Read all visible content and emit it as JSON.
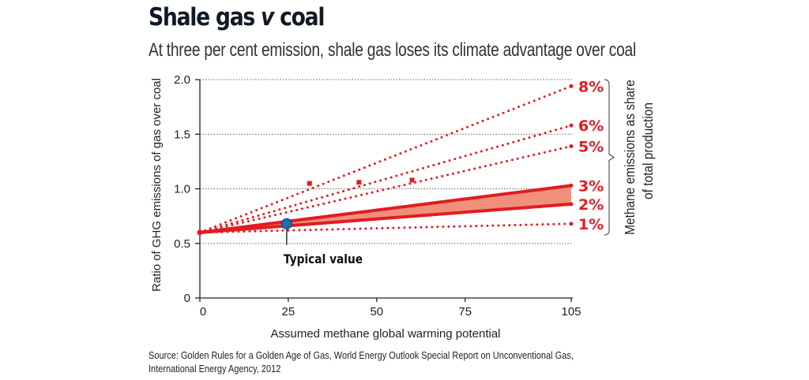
{
  "header": {
    "title_main": "Shale gas ",
    "title_v": "v",
    "title_end": " coal",
    "subtitle": "At three per cent emission, shale gas loses its climate advantage over coal"
  },
  "source": {
    "line1": "Source: Golden Rules for a Golden Age of Gas, World Energy Outlook Special Report on Unconventional Gas,",
    "line2": "International Energy Agency, 2012"
  },
  "colors": {
    "red": "#e31b23",
    "band_fill": "#f0907a",
    "typical_marker": "#1f6db5"
  },
  "chart_data": {
    "type": "line",
    "title": "Shale gas v coal",
    "subtitle": "At three per cent emission, shale gas loses its climate advantage over coal",
    "xlabel": "Assumed methane global warming potential",
    "ylabel": "Ratio of GHG emissions of gas over coal",
    "xlim": [
      0,
      105
    ],
    "ylim": [
      0,
      2.0
    ],
    "xticks": [
      0,
      25,
      50,
      75,
      105
    ],
    "xtick_labels": [
      "0",
      "25",
      "50",
      "75",
      "105"
    ],
    "yticks": [
      0,
      0.5,
      1.0,
      1.5,
      2.0
    ],
    "ytick_labels": [
      "0",
      "0.5",
      "1.0",
      "1.5",
      "2.0"
    ],
    "grid": "horizontal dotted",
    "legend_title": "Methane emissions as share of total production",
    "legend_placement": "right",
    "series": [
      {
        "name": "8%",
        "style": "dotted",
        "x": [
          0,
          105
        ],
        "y": [
          0.6,
          1.94
        ]
      },
      {
        "name": "6%",
        "style": "dotted",
        "x": [
          0,
          105
        ],
        "y": [
          0.6,
          1.58
        ]
      },
      {
        "name": "5%",
        "style": "dotted",
        "x": [
          0,
          105
        ],
        "y": [
          0.6,
          1.39
        ]
      },
      {
        "name": "3%",
        "style": "solid",
        "x": [
          0,
          105
        ],
        "y": [
          0.6,
          1.03
        ]
      },
      {
        "name": "2%",
        "style": "solid",
        "x": [
          0,
          105
        ],
        "y": [
          0.6,
          0.86
        ]
      },
      {
        "name": "1%",
        "style": "dotted",
        "x": [
          0,
          105
        ],
        "y": [
          0.6,
          0.68
        ]
      }
    ],
    "shaded_band": {
      "between": [
        "2%",
        "3%"
      ]
    },
    "markers": [
      {
        "series": "8%",
        "x": 31,
        "y": 1.05
      },
      {
        "series": "6%",
        "x": 45,
        "y": 1.06
      },
      {
        "series": "5%",
        "x": 60,
        "y": 1.08
      }
    ],
    "annotations": [
      {
        "text": "Typical value",
        "x": 25,
        "y": 0.68
      }
    ]
  }
}
